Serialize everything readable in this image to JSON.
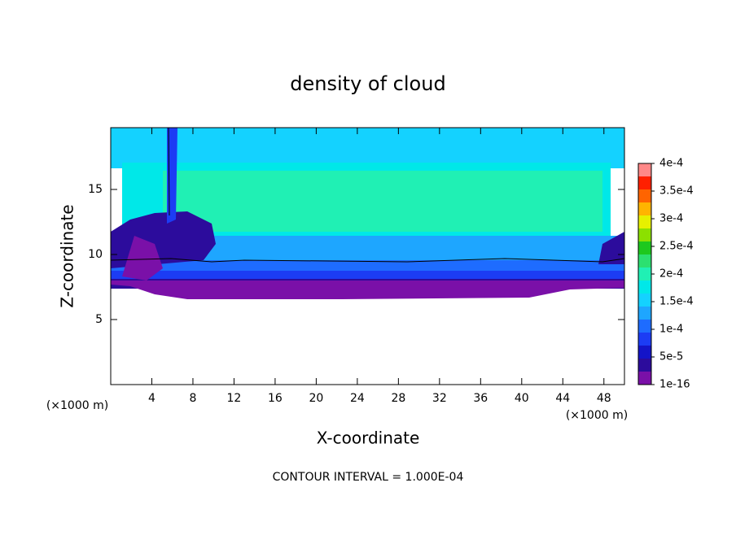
{
  "chart_data": {
    "type": "contour",
    "title": "density of cloud",
    "x_label": "X-coordinate",
    "y_label": "Z-coordinate",
    "x_unit_label": "(×1000 m)",
    "annotation": "CONTOUR INTERVAL = 1.000E-04",
    "xlim": [
      0,
      50
    ],
    "xticks": [
      4,
      8,
      12,
      16,
      20,
      24,
      28,
      32,
      36,
      40,
      44,
      48
    ],
    "ylim": [
      0,
      19.75
    ],
    "yticks": [
      5,
      10,
      15
    ],
    "colorbar": {
      "lim": [
        1e-16,
        0.0004
      ],
      "ticks": [
        {
          "value": 1e-16,
          "label": "1e-16"
        },
        {
          "value": 5e-05,
          "label": "5e-5"
        },
        {
          "value": 0.0001,
          "label": "1e-4"
        },
        {
          "value": 0.00015,
          "label": "1.5e-4"
        },
        {
          "value": 0.0002,
          "label": "2e-4"
        },
        {
          "value": 0.00025,
          "label": "2.5e-4"
        },
        {
          "value": 0.0003,
          "label": "3e-4"
        },
        {
          "value": 0.00035,
          "label": "3.5e-4"
        },
        {
          "value": 0.0004,
          "label": "4e-4"
        }
      ],
      "colors": [
        "#7a10a8",
        "#2c0c9c",
        "#1414c8",
        "#1c3cf4",
        "#1e6cff",
        "#1ea6ff",
        "#14d2ff",
        "#00e8e8",
        "#20f0b4",
        "#2ce070",
        "#1ec81e",
        "#8ce000",
        "#e6f000",
        "#ffb400",
        "#ff6400",
        "#ff2000",
        "#ff8888"
      ]
    }
  }
}
